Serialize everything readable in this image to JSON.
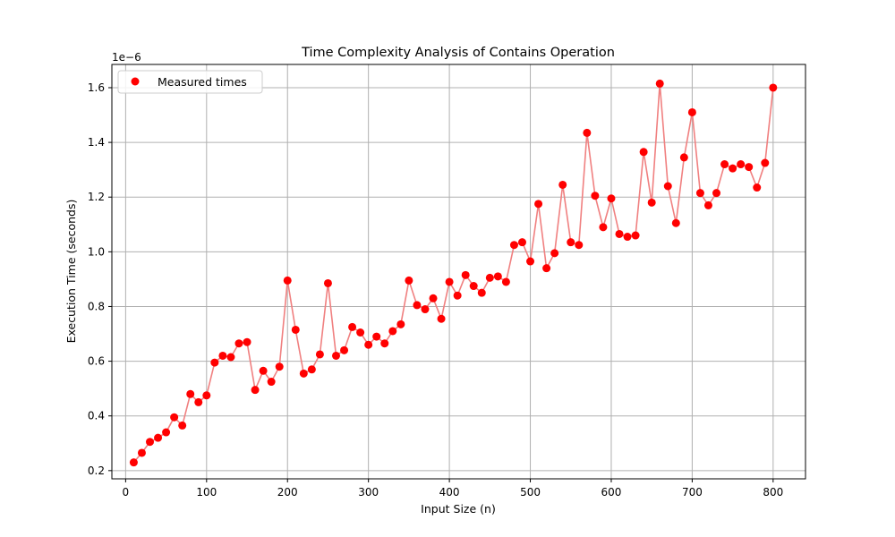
{
  "chart_data": {
    "type": "scatter",
    "title": "Time Complexity Analysis of Contains Operation",
    "xlabel": "Input Size (n)",
    "ylabel": "Execution Time (seconds)",
    "y_offset_label": "1e−6",
    "xlim": [
      -17,
      840
    ],
    "ylim": [
      0.17,
      1.685
    ],
    "xticks": [
      0,
      100,
      200,
      300,
      400,
      500,
      600,
      700,
      800
    ],
    "yticks": [
      0.2,
      0.4,
      0.6,
      0.8,
      1.0,
      1.2,
      1.4,
      1.6
    ],
    "ytick_labels": [
      "0.2",
      "0.4",
      "0.6",
      "0.8",
      "1.0",
      "1.2",
      "1.4",
      "1.6"
    ],
    "grid": true,
    "legend_position": "upper-left",
    "marker_color": "#ff0000",
    "line_color": "#f08080",
    "series": [
      {
        "name": "Measured times",
        "x": [
          10,
          20,
          30,
          40,
          50,
          60,
          70,
          80,
          90,
          100,
          110,
          120,
          130,
          140,
          150,
          160,
          170,
          180,
          190,
          200,
          210,
          220,
          230,
          240,
          250,
          260,
          270,
          280,
          290,
          300,
          310,
          320,
          330,
          340,
          350,
          360,
          370,
          380,
          390,
          400,
          410,
          420,
          430,
          440,
          450,
          460,
          470,
          480,
          490,
          500,
          510,
          520,
          530,
          540,
          550,
          560,
          570,
          580,
          590,
          600,
          610,
          620,
          630,
          640,
          650,
          660,
          670,
          680,
          690,
          700,
          710,
          720,
          730,
          740,
          750,
          760,
          770,
          780,
          790,
          800
        ],
        "y": [
          0.23,
          0.265,
          0.305,
          0.32,
          0.34,
          0.395,
          0.365,
          0.48,
          0.45,
          0.475,
          0.595,
          0.62,
          0.615,
          0.665,
          0.67,
          0.495,
          0.565,
          0.525,
          0.58,
          0.895,
          0.715,
          0.555,
          0.57,
          0.625,
          0.885,
          0.62,
          0.64,
          0.725,
          0.705,
          0.66,
          0.69,
          0.665,
          0.71,
          0.735,
          0.895,
          0.805,
          0.79,
          0.83,
          0.755,
          0.89,
          0.84,
          0.915,
          0.875,
          0.85,
          0.905,
          0.91,
          0.89,
          1.025,
          1.035,
          0.965,
          1.175,
          0.94,
          0.995,
          1.245,
          1.035,
          1.025,
          1.435,
          1.205,
          1.09,
          1.195,
          1.065,
          1.055,
          1.06,
          1.365,
          1.18,
          1.615,
          1.24,
          1.105,
          1.345,
          1.51,
          1.215,
          1.17,
          1.215,
          1.32,
          1.305,
          1.32,
          1.31,
          1.235,
          1.325,
          1.6
        ]
      }
    ]
  }
}
